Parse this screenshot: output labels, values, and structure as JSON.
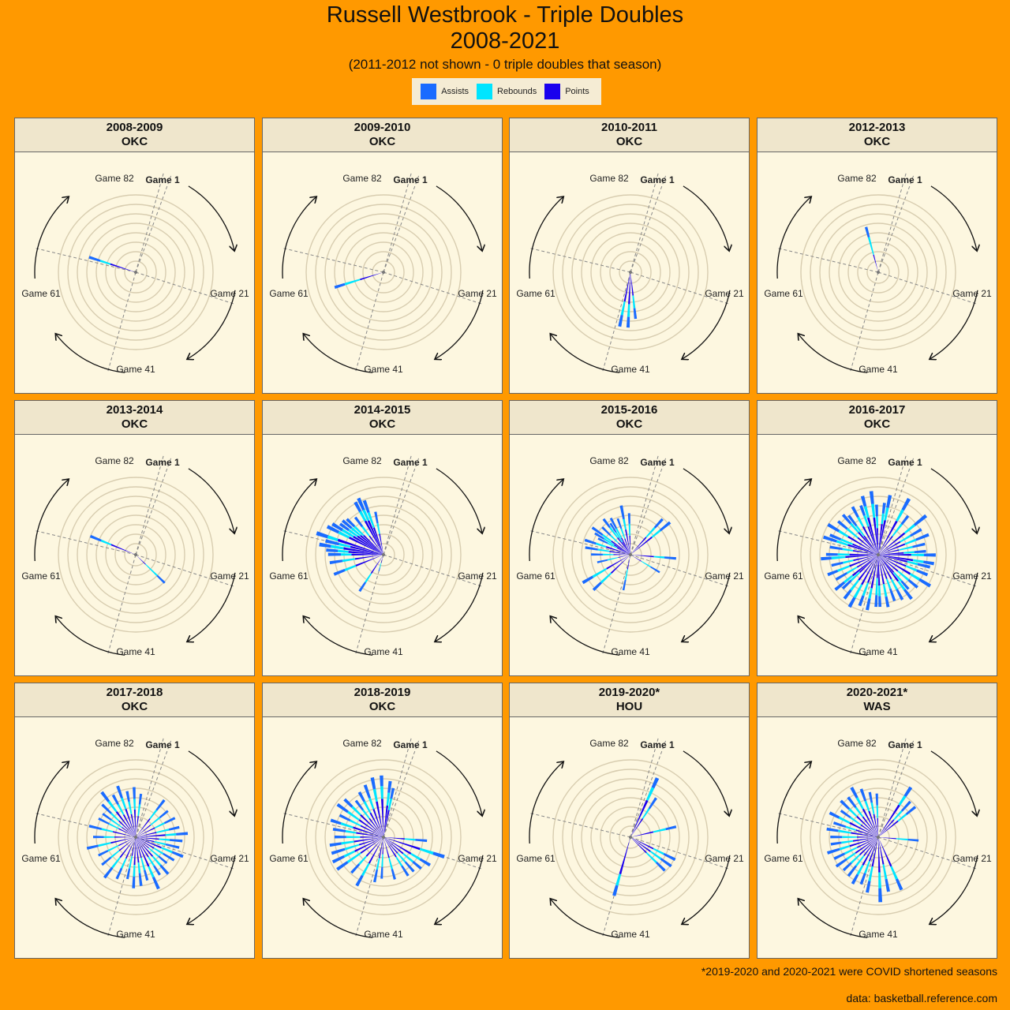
{
  "header": {
    "title_line1": "Russell Westbrook - Triple Doubles",
    "title_line2": "2008-2021",
    "subtitle": "(2011-2012 not shown - 0 triple doubles that season)"
  },
  "legend": [
    {
      "label": "Assists",
      "color": "#1a6bff"
    },
    {
      "label": "Rebounds",
      "color": "#00e5ff"
    },
    {
      "label": "Points",
      "color": "#1a00ee"
    }
  ],
  "axis_labels": {
    "g1": "Game 1",
    "g21": "Game 21",
    "g41": "Game 41",
    "g61": "Game 61",
    "g82": "Game 82"
  },
  "footer": {
    "note": "*2019-2020 and 2020-2021 were COVID shortened seasons",
    "source": "data:  basketball.reference.com"
  },
  "chart_data": {
    "type": "bar",
    "coord": "polar",
    "theta_axis": "game number (1-82)",
    "radius_axis": "stacked stat total",
    "series_order": [
      "Points",
      "Rebounds",
      "Assists"
    ],
    "panels": [
      {
        "season": "2008-2009",
        "team": "OKC",
        "games": [
          [
            62,
            25,
            10,
            11
          ]
        ]
      },
      {
        "season": "2009-2010",
        "team": "OKC",
        "games": [
          [
            54,
            23,
            15,
            10
          ]
        ]
      },
      {
        "season": "2010-2011",
        "team": "OKC",
        "games": [
          [
            38,
            30,
            12,
            10
          ],
          [
            40,
            28,
            13,
            11
          ],
          [
            36,
            22,
            12,
            10
          ]
        ]
      },
      {
        "season": "2012-2013",
        "team": "OKC",
        "games": [
          [
            75,
            17,
            17,
            10
          ]
        ]
      },
      {
        "season": "2013-2014",
        "team": "OKC",
        "games": [
          [
            63,
            25,
            10,
            11
          ],
          [
            27,
            13,
            15,
            10
          ]
        ]
      },
      {
        "season": "2014-2015",
        "team": "OKC",
        "games": [
          [
            41,
            8,
            5,
            3
          ],
          [
            45,
            21,
            10,
            10
          ],
          [
            53,
            28,
            11,
            11
          ],
          [
            56,
            27,
            12,
            12
          ],
          [
            58,
            30,
            10,
            12
          ],
          [
            59,
            33,
            10,
            11
          ],
          [
            60,
            38,
            12,
            11
          ],
          [
            61,
            32,
            11,
            13
          ],
          [
            62,
            45,
            10,
            11
          ],
          [
            64,
            36,
            11,
            12
          ],
          [
            65,
            33,
            12,
            11
          ],
          [
            66,
            30,
            10,
            10
          ],
          [
            67,
            28,
            11,
            11
          ],
          [
            68,
            26,
            12,
            10
          ],
          [
            70,
            22,
            11,
            11
          ],
          [
            72,
            36,
            10,
            10
          ],
          [
            73,
            35,
            11,
            12
          ],
          [
            74,
            27,
            15,
            12
          ],
          [
            76,
            20,
            10,
            11
          ]
        ]
      },
      {
        "season": "2015-2016",
        "team": "OKC",
        "games": [
          [
            6,
            22,
            12,
            11
          ],
          [
            8,
            26,
            10,
            12
          ],
          [
            18,
            22,
            10,
            11
          ],
          [
            24,
            12,
            10,
            10
          ],
          [
            40,
            14,
            10,
            10
          ],
          [
            48,
            25,
            13,
            10
          ],
          [
            51,
            26,
            15,
            11
          ],
          [
            55,
            12,
            10,
            10
          ],
          [
            58,
            16,
            10,
            11
          ],
          [
            60,
            20,
            11,
            12
          ],
          [
            62,
            24,
            10,
            11
          ],
          [
            64,
            14,
            10,
            10
          ],
          [
            65,
            18,
            11,
            10
          ],
          [
            66,
            22,
            10,
            12
          ],
          [
            68,
            16,
            10,
            11
          ],
          [
            70,
            20,
            12,
            10
          ],
          [
            71,
            14,
            11,
            10
          ],
          [
            72,
            18,
            10,
            11
          ],
          [
            74,
            16,
            10,
            10
          ],
          [
            76,
            24,
            10,
            13
          ],
          [
            78,
            18,
            11,
            10
          ]
        ]
      },
      {
        "season": "2016-2017",
        "team": "OKC",
        "games": [
          [
            3,
            36,
            12,
            12
          ],
          [
            5,
            22,
            14,
            10
          ],
          [
            8,
            32,
            12,
            14
          ],
          [
            10,
            24,
            11,
            12
          ],
          [
            12,
            27,
            11,
            13
          ],
          [
            14,
            20,
            13,
            12
          ],
          [
            16,
            24,
            10,
            11
          ],
          [
            17,
            31,
            12,
            11
          ],
          [
            19,
            33,
            10,
            10
          ],
          [
            20,
            28,
            10,
            12
          ],
          [
            22,
            28,
            11,
            11
          ],
          [
            24,
            35,
            10,
            12
          ],
          [
            26,
            24,
            13,
            11
          ],
          [
            28,
            22,
            11,
            10
          ],
          [
            29,
            31,
            10,
            11
          ],
          [
            31,
            26,
            11,
            11
          ],
          [
            33,
            24,
            10,
            12
          ],
          [
            35,
            28,
            12,
            10
          ],
          [
            37,
            29,
            10,
            10
          ],
          [
            38,
            22,
            16,
            11
          ],
          [
            40,
            32,
            10,
            11
          ],
          [
            42,
            28,
            13,
            10
          ],
          [
            44,
            32,
            14,
            10
          ],
          [
            46,
            30,
            12,
            10
          ],
          [
            48,
            24,
            11,
            11
          ],
          [
            49,
            31,
            10,
            11
          ],
          [
            51,
            23,
            11,
            12
          ],
          [
            53,
            29,
            12,
            10
          ],
          [
            55,
            24,
            10,
            11
          ],
          [
            57,
            31,
            13,
            10
          ],
          [
            58,
            27,
            11,
            11
          ],
          [
            60,
            24,
            10,
            12
          ],
          [
            62,
            30,
            11,
            13
          ],
          [
            63,
            26,
            12,
            11
          ],
          [
            65,
            33,
            10,
            12
          ],
          [
            67,
            25,
            13,
            11
          ],
          [
            69,
            28,
            11,
            11
          ],
          [
            70,
            22,
            12,
            12
          ],
          [
            72,
            30,
            10,
            11
          ],
          [
            74,
            28,
            11,
            10
          ],
          [
            75,
            36,
            11,
            10
          ],
          [
            77,
            35,
            13,
            12
          ],
          [
            78,
            25,
            11,
            11
          ],
          [
            80,
            29,
            10,
            10
          ],
          [
            81,
            33,
            12,
            12
          ]
        ]
      },
      {
        "season": "2017-2018",
        "team": "OKC",
        "games": [
          [
            5,
            22,
            10,
            12
          ],
          [
            8,
            18,
            11,
            10
          ],
          [
            11,
            20,
            10,
            11
          ],
          [
            14,
            20,
            12,
            10
          ],
          [
            16,
            28,
            10,
            11
          ],
          [
            18,
            22,
            10,
            12
          ],
          [
            20,
            18,
            11,
            13
          ],
          [
            22,
            26,
            11,
            11
          ],
          [
            24,
            20,
            10,
            12
          ],
          [
            26,
            16,
            12,
            10
          ],
          [
            28,
            24,
            11,
            11
          ],
          [
            30,
            22,
            10,
            10
          ],
          [
            32,
            30,
            11,
            12
          ],
          [
            34,
            20,
            12,
            10
          ],
          [
            36,
            24,
            10,
            12
          ],
          [
            38,
            26,
            11,
            11
          ],
          [
            40,
            18,
            12,
            10
          ],
          [
            43,
            22,
            10,
            11
          ],
          [
            46,
            24,
            12,
            12
          ],
          [
            49,
            20,
            10,
            11
          ],
          [
            52,
            18,
            11,
            10
          ],
          [
            55,
            24,
            12,
            11
          ],
          [
            58,
            20,
            10,
            10
          ],
          [
            61,
            22,
            11,
            12
          ],
          [
            64,
            18,
            10,
            11
          ],
          [
            66,
            16,
            12,
            10
          ],
          [
            68,
            22,
            10,
            12
          ],
          [
            70,
            30,
            12,
            11
          ],
          [
            72,
            24,
            11,
            10
          ],
          [
            74,
            28,
            11,
            12
          ],
          [
            76,
            22,
            12,
            10
          ],
          [
            78,
            26,
            10,
            11
          ],
          [
            80,
            20,
            11,
            10
          ]
        ]
      },
      {
        "season": "2018-2019",
        "team": "OKC",
        "games": [
          [
            18,
            20,
            10,
            11
          ],
          [
            21,
            36,
            13,
            11
          ],
          [
            24,
            30,
            10,
            11
          ],
          [
            26,
            24,
            12,
            10
          ],
          [
            28,
            20,
            11,
            12
          ],
          [
            30,
            22,
            10,
            11
          ],
          [
            34,
            20,
            11,
            10
          ],
          [
            38,
            16,
            12,
            11
          ],
          [
            40,
            20,
            11,
            12
          ],
          [
            44,
            28,
            13,
            11
          ],
          [
            47,
            24,
            10,
            11
          ],
          [
            50,
            26,
            15,
            12
          ],
          [
            52,
            30,
            11,
            12
          ],
          [
            54,
            24,
            14,
            13
          ],
          [
            56,
            28,
            12,
            11
          ],
          [
            58,
            22,
            13,
            11
          ],
          [
            60,
            26,
            10,
            12
          ],
          [
            62,
            30,
            12,
            10
          ],
          [
            64,
            24,
            11,
            11
          ],
          [
            66,
            28,
            13,
            12
          ],
          [
            68,
            30,
            11,
            10
          ],
          [
            70,
            22,
            10,
            11
          ],
          [
            72,
            26,
            12,
            10
          ],
          [
            74,
            28,
            11,
            13
          ],
          [
            76,
            34,
            12,
            11
          ],
          [
            78,
            36,
            12,
            10
          ],
          [
            80,
            30,
            12,
            11
          ],
          [
            81,
            26,
            11,
            10
          ]
        ]
      },
      {
        "season": "2019-2020*",
        "team": "HOU",
        "games": [
          [
            2,
            38,
            13,
            10
          ],
          [
            4,
            21,
            11,
            12
          ],
          [
            14,
            22,
            12,
            10
          ],
          [
            23,
            24,
            11,
            12
          ],
          [
            25,
            23,
            12,
            12
          ],
          [
            27,
            21,
            13,
            11
          ],
          [
            41,
            36,
            11,
            10
          ]
        ]
      },
      {
        "season": "2020-2021*",
        "team": "WAS",
        "games": [
          [
            4,
            36,
            10,
            10
          ],
          [
            6,
            22,
            11,
            12
          ],
          [
            8,
            24,
            10,
            11
          ],
          [
            18,
            17,
            11,
            10
          ],
          [
            32,
            30,
            13,
            11
          ],
          [
            35,
            26,
            14,
            12
          ],
          [
            37,
            33,
            15,
            13
          ],
          [
            40,
            28,
            14,
            11
          ],
          [
            42,
            24,
            12,
            11
          ],
          [
            44,
            30,
            10,
            10
          ],
          [
            46,
            22,
            12,
            12
          ],
          [
            48,
            24,
            11,
            10
          ],
          [
            50,
            26,
            10,
            12
          ],
          [
            52,
            22,
            13,
            11
          ],
          [
            54,
            28,
            10,
            12
          ],
          [
            56,
            24,
            11,
            10
          ],
          [
            58,
            20,
            14,
            11
          ],
          [
            60,
            26,
            12,
            11
          ],
          [
            62,
            22,
            10,
            12
          ],
          [
            64,
            30,
            11,
            10
          ],
          [
            66,
            20,
            12,
            11
          ],
          [
            68,
            28,
            10,
            11
          ],
          [
            70,
            24,
            11,
            12
          ],
          [
            72,
            30,
            12,
            11
          ],
          [
            74,
            26,
            10,
            12
          ],
          [
            76,
            22,
            11,
            10
          ],
          [
            78,
            18,
            12,
            11
          ]
        ]
      }
    ]
  }
}
